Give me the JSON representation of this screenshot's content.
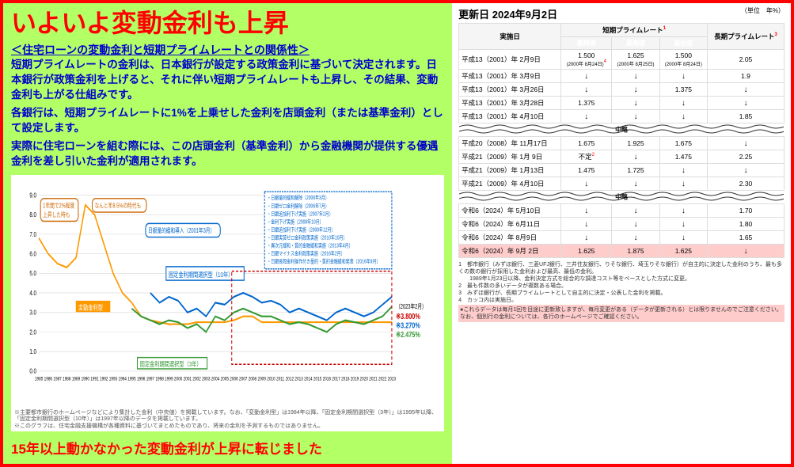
{
  "left": {
    "headline": "いよいよ変動金利も上昇",
    "subtitle": "＜住宅ローンの変動金利と短期プライムレートとの関係性＞",
    "paragraph1": "短期プライムレートの金利は、日本銀行が設定する政策金利に基づいて決定されます。日本銀行が政策金利を上げると、それに伴い短期プライムレートも上昇し、その結果、変動金利も上がる仕組みです。",
    "paragraph2": "各銀行は、短期プライムレートに1%を上乗せした金利を店頭金利（または基準金利）として設定します。",
    "paragraph3": "実際に住宅ローンを組む際には、この店頭金利（基準金利）から金融機関が提供する優遇金利を差し引いた金利が適用されます。",
    "footer": "15年以上動かなかった変動金利が上昇に転じました"
  },
  "chart": {
    "balloon1a": "1年間で2%程度",
    "balloon1b": "上昇した時も",
    "balloon2": "なんと年8.5%の時代も",
    "balloon3": "日銀量的緩和導入（2001年3月）",
    "box_label": "固定金利期間選択型（10年）",
    "series_variable": "変動金利型",
    "series_fixed3": "固定金利期間選択型（3年）",
    "annotations": [
      "・日銀量的緩和解除（2006年3月）",
      "・日銀ゼロ金利解除（2006年7月）",
      "・日銀追加利下げ実施（2007年2月）",
      "・金利下げ実施（2008年10月）",
      "・日銀追加利下げ実施（2008年12月）",
      "・日銀実質ゼロ金利政策実施（2010年10月）",
      "・異次元緩和・質的金融緩和実施（2013年4月）",
      "・日銀マイナス金利政策実施（2016年2月）",
      "・日銀長短金利操作付き量的・質的金融緩和発表（2016年9月）"
    ],
    "current_label": "（2023年2月）",
    "current_values": [
      "※3.800%",
      "※3.270%",
      "※2.475%"
    ],
    "current_colors": [
      "#cc0000",
      "#0066cc",
      "#339933"
    ],
    "x_ticks": [
      "1985",
      "1986",
      "1987",
      "1988",
      "1989",
      "1990",
      "1991",
      "1992",
      "1993",
      "1994",
      "1995",
      "1996",
      "1997",
      "1998",
      "1999",
      "2000",
      "2001",
      "2002",
      "2003",
      "2004",
      "2005",
      "2006",
      "2007",
      "2008",
      "2009",
      "2010",
      "2011",
      "2012",
      "2013",
      "2014",
      "2015",
      "2016",
      "2017",
      "2018",
      "2019",
      "2020",
      "2021",
      "2022",
      "2023"
    ],
    "y_max": 9,
    "series": {
      "variable": {
        "color": "#ff9900",
        "data": [
          6.8,
          6.0,
          5.5,
          5.3,
          5.8,
          8.5,
          8.0,
          6.5,
          5.0,
          4.0,
          3.5,
          2.8,
          2.6,
          2.5,
          2.4,
          2.4,
          2.4,
          2.5,
          2.5,
          2.5,
          2.5,
          2.6,
          2.8,
          2.8,
          2.5,
          2.5,
          2.5,
          2.5,
          2.5,
          2.5,
          2.5,
          2.5,
          2.5,
          2.5,
          2.5,
          2.5,
          2.5,
          2.5,
          2.5
        ]
      },
      "fixed10": {
        "color": "#0066cc",
        "data": [
          null,
          null,
          null,
          null,
          null,
          null,
          null,
          null,
          null,
          null,
          null,
          null,
          4.0,
          3.5,
          3.8,
          3.6,
          3.0,
          3.2,
          2.8,
          3.5,
          3.4,
          3.8,
          4.0,
          3.8,
          3.5,
          3.6,
          3.4,
          3.0,
          3.2,
          3.0,
          2.8,
          2.6,
          3.0,
          3.2,
          3.0,
          2.8,
          3.0,
          3.4,
          3.8
        ]
      },
      "fixed3": {
        "color": "#339933",
        "data": [
          null,
          null,
          null,
          null,
          null,
          null,
          null,
          null,
          null,
          null,
          3.2,
          2.8,
          2.6,
          2.4,
          2.6,
          2.5,
          2.2,
          2.4,
          2.0,
          2.8,
          2.6,
          3.0,
          3.2,
          3.0,
          2.8,
          2.8,
          2.6,
          2.4,
          2.5,
          2.4,
          2.2,
          2.0,
          2.4,
          2.6,
          2.5,
          2.4,
          2.6,
          2.8,
          3.3
        ]
      }
    },
    "chart_footnote": "※主要都市銀行のホームページなどにより集計した金利（中央値）を掲載しています。なお、「変動金利型」は1984年以降、「固定金利期間選択型（3年）」は1995年以降、「固定金利期間選択型（10年）」は1997年以降のデータを掲載しています。\n※このグラフは、住宅金融支援機構が各種資料に基づいてまとめたものであり、将来の金利を予測するものではありません。"
  },
  "table": {
    "update_label": "更新日 2024年9月2日",
    "unit": "（単位　年%）",
    "headers": {
      "date": "実施日",
      "prime": "短期プライムレート",
      "long": "長期プライムレート",
      "most": "最頻値",
      "max": "最高値",
      "min": "最低値"
    },
    "omit_label": "中略",
    "rows": [
      {
        "date": "平成13（2001）年 2月9日",
        "most": "1.500\n(2000年 8月24日)",
        "max": "1.625\n(2000年 8月25日)",
        "min": "1.500\n(2000年 8月24日)",
        "long": "2.05",
        "sup": "4"
      },
      {
        "date": "平成13（2001）年 3月9日",
        "most": "↓",
        "max": "↓",
        "min": "↓",
        "long": "1.9"
      },
      {
        "date": "平成13（2001）年 3月26日",
        "most": "↓",
        "max": "↓",
        "min": "1.375",
        "long": "↓"
      },
      {
        "date": "平成13（2001）年 3月28日",
        "most": "1.375",
        "max": "↓",
        "min": "↓",
        "long": "↓"
      },
      {
        "date": "平成13（2001）年 4月10日",
        "most": "↓",
        "max": "↓",
        "min": "↓",
        "long": "1.85"
      }
    ],
    "rows2": [
      {
        "date": "平成20（2008）年 11月17日",
        "most": "1.675",
        "max": "1.925",
        "min": "1.675",
        "long": "↓"
      },
      {
        "date": "平成21（2009）年 1月 9日",
        "most": "不定",
        "sup": "2",
        "max": "↓",
        "min": "1.475",
        "long": "2.25"
      },
      {
        "date": "平成21（2009）年 1月13日",
        "most": "1.475",
        "max": "1.725",
        "min": "↓",
        "long": "↓"
      },
      {
        "date": "平成21（2009）年 4月10日",
        "most": "↓",
        "max": "↓",
        "min": "↓",
        "long": "2.30"
      }
    ],
    "rows3": [
      {
        "date": "令和6（2024）年 5月10日",
        "most": "↓",
        "max": "↓",
        "min": "↓",
        "long": "1.70"
      },
      {
        "date": "令和6（2024）年 6月11日",
        "most": "↓",
        "max": "↓",
        "min": "↓",
        "long": "1.80"
      },
      {
        "date": "令和6（2024）年 8月9日",
        "most": "↓",
        "max": "↓",
        "min": "↓",
        "long": "1.65"
      },
      {
        "date": "令和6（2024）年 9月 2日",
        "most": "1.625",
        "max": "1.875",
        "min": "1.625",
        "long": "↓",
        "highlight": true
      }
    ],
    "footnotes": [
      "1　都市銀行（みずほ銀行、三菱UFJ銀行、三井住友銀行、りそな銀行、埼玉りそな銀行）が自主的に決定した金利のうち、最も多くの数の銀行が採用した金利および最高、最低の金利。",
      "　　1989年1月23日以降、金利決定方式を総合的な調達コスト等をベースとした方式に変更。",
      "2　最も件数の多いデータが複数ある場合。",
      "3　みずほ銀行が、長期プライムレートとして自主的に決定・公表した金利を掲載。",
      "4　カッコ内は実施日。"
    ],
    "pink_note": "●これらデータは毎月1回を目途に更新致しますが、毎月変更がある（データが更新される）とは限りませんのでご注意ください。なお、個別行の金利については、各行のホームページでご確認ください。"
  }
}
